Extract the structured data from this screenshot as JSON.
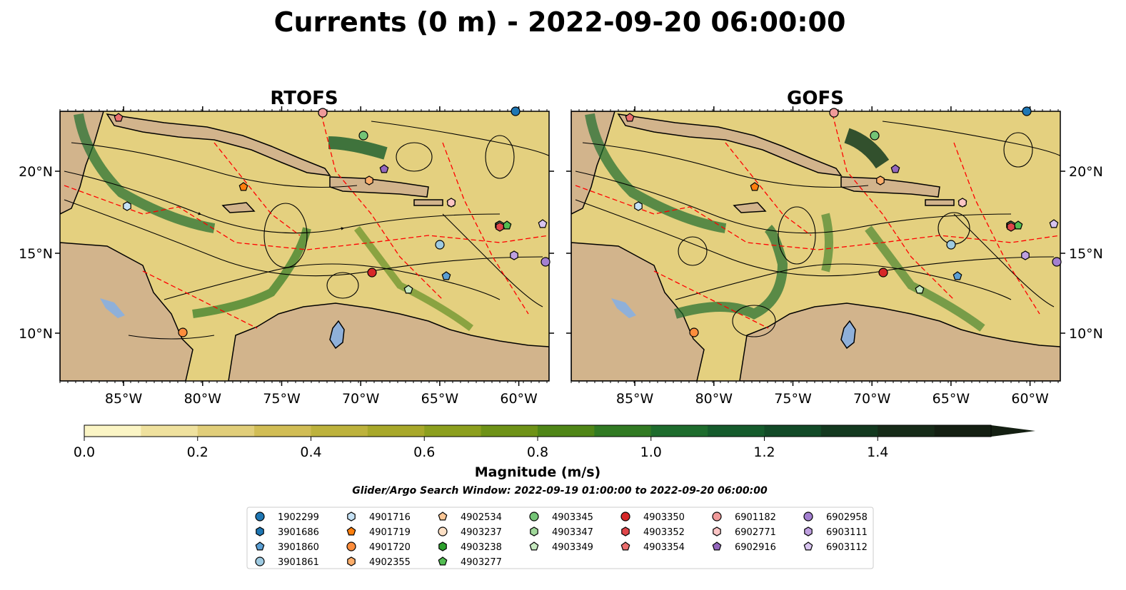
{
  "title": "Currents (0 m) - 2022-09-20 06:00:00",
  "panels": [
    {
      "title": "RTOFS",
      "xticks": [
        "85°W",
        "80°W",
        "75°W",
        "70°W",
        "65°W",
        "60°W"
      ],
      "yticks": [
        "20°N",
        "15°N",
        "10°N"
      ],
      "ytick_side": "left"
    },
    {
      "title": "GOFS",
      "xticks": [
        "85°W",
        "80°W",
        "75°W",
        "70°W",
        "65°W",
        "60°W"
      ],
      "yticks": [
        "20°N",
        "15°N",
        "10°N"
      ],
      "ytick_side": "right"
    }
  ],
  "colorbar": {
    "label": "Magnitude (m/s)",
    "tick_labels": [
      "0.0",
      "0.2",
      "0.4",
      "0.6",
      "0.8",
      "1.0",
      "1.2",
      "1.4"
    ],
    "colors": [
      "#fbf5c5",
      "#efe19e",
      "#e1ce7a",
      "#d1bd55",
      "#bdb23c",
      "#a8a82a",
      "#8c9f1e",
      "#6e9217",
      "#4f8617",
      "#317a23",
      "#1e6c2d",
      "#155b2c",
      "#124a27",
      "#13391f",
      "#162b18",
      "#141f12"
    ]
  },
  "subtitle": "Glider/Argo Search Window: 2022-09-19 01:00:00 to 2022-09-20 06:00:00",
  "legend": {
    "columns": [
      [
        {
          "id": "1902299",
          "color": "#1f77b4",
          "marker": "circle"
        },
        {
          "id": "3901686",
          "color": "#1f77b4",
          "marker": "hexagon"
        },
        {
          "id": "3901860",
          "color": "#5b9fd4",
          "marker": "pentagon"
        },
        {
          "id": "3901861",
          "color": "#9ecae1",
          "marker": "circle"
        }
      ],
      [
        {
          "id": "4901716",
          "color": "#c6e2f5",
          "marker": "hexagon"
        },
        {
          "id": "4901719",
          "color": "#ff7f0e",
          "marker": "pentagon"
        },
        {
          "id": "4901720",
          "color": "#fd8d3c",
          "marker": "circle"
        },
        {
          "id": "4902355",
          "color": "#fdae6b",
          "marker": "hexagon"
        }
      ],
      [
        {
          "id": "4902534",
          "color": "#fdc796",
          "marker": "pentagon"
        },
        {
          "id": "4903237",
          "color": "#fde0c5",
          "marker": "circle"
        },
        {
          "id": "4903238",
          "color": "#2ca02c",
          "marker": "hexagon"
        },
        {
          "id": "4903277",
          "color": "#52bd52",
          "marker": "pentagon"
        }
      ],
      [
        {
          "id": "4903345",
          "color": "#74c476",
          "marker": "circle"
        },
        {
          "id": "4903347",
          "color": "#a1d99b",
          "marker": "hexagon"
        },
        {
          "id": "4903349",
          "color": "#c7e9c0",
          "marker": "pentagon"
        }
      ],
      [
        {
          "id": "4903350",
          "color": "#d62728",
          "marker": "circle"
        },
        {
          "id": "4903352",
          "color": "#e0464a",
          "marker": "hexagon"
        },
        {
          "id": "4903354",
          "color": "#eb6e6e",
          "marker": "pentagon"
        }
      ],
      [
        {
          "id": "6901182",
          "color": "#f09a9a",
          "marker": "circle"
        },
        {
          "id": "6902771",
          "color": "#fcc5c5",
          "marker": "hexagon"
        },
        {
          "id": "6902916",
          "color": "#9467bd",
          "marker": "pentagon"
        }
      ],
      [
        {
          "id": "6902958",
          "color": "#a37fd0",
          "marker": "circle"
        },
        {
          "id": "6903111",
          "color": "#bfa0e0",
          "marker": "hexagon"
        },
        {
          "id": "6903112",
          "color": "#d8c4f0",
          "marker": "pentagon"
        }
      ]
    ]
  },
  "map_colors": {
    "land": "#d2b48c",
    "water_base": "#e4d07f",
    "lakes": "#8fb0d9",
    "eez": "#ff0000"
  }
}
